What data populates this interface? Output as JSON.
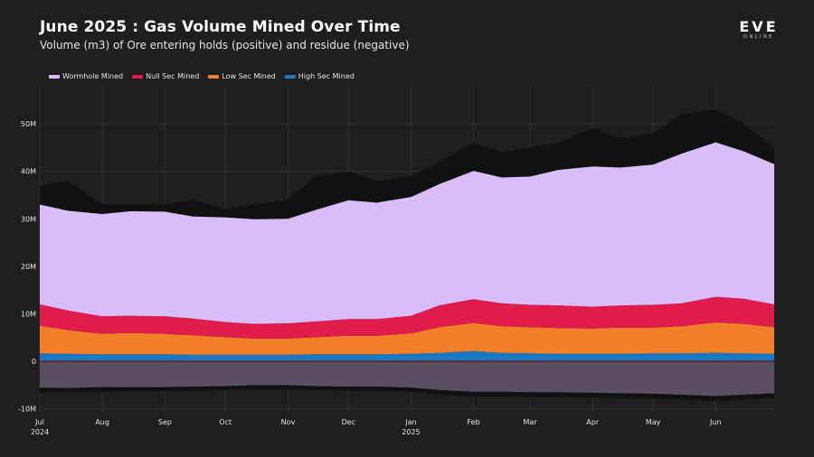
{
  "header": {
    "title": "June 2025 : Gas Volume Mined Over Time",
    "subtitle": "Volume (m3) of Ore entering holds (positive) and residue (negative)"
  },
  "logo": {
    "main": "EVE",
    "sub": "ONLINE"
  },
  "colors": {
    "background": "#1e1e1e",
    "grid": "#333333",
    "total_envelope": "#111111",
    "residue": "#5a4e62",
    "residue_envelope": "#111111",
    "zero_line": "#6b1f1f"
  },
  "chart_data": {
    "type": "area",
    "stacked": true,
    "x_range": [
      "2024-07-01",
      "2025-06-30"
    ],
    "x_ticks": [
      {
        "date": "2024-07-01",
        "label": "Jul",
        "sublabel": "2024"
      },
      {
        "date": "2024-08-01",
        "label": "Aug",
        "sublabel": ""
      },
      {
        "date": "2024-09-01",
        "label": "Sep",
        "sublabel": ""
      },
      {
        "date": "2024-10-01",
        "label": "Oct",
        "sublabel": ""
      },
      {
        "date": "2024-11-01",
        "label": "Nov",
        "sublabel": ""
      },
      {
        "date": "2024-12-01",
        "label": "Dec",
        "sublabel": ""
      },
      {
        "date": "2025-01-01",
        "label": "Jan",
        "sublabel": "2025"
      },
      {
        "date": "2025-02-01",
        "label": "Feb",
        "sublabel": ""
      },
      {
        "date": "2025-03-01",
        "label": "Mar",
        "sublabel": ""
      },
      {
        "date": "2025-04-01",
        "label": "Apr",
        "sublabel": ""
      },
      {
        "date": "2025-05-01",
        "label": "May",
        "sublabel": ""
      },
      {
        "date": "2025-06-01",
        "label": "Jun",
        "sublabel": ""
      }
    ],
    "y_ticks": [
      {
        "value": -10,
        "label": "-10M"
      },
      {
        "value": 0,
        "label": "0"
      },
      {
        "value": 10,
        "label": "10M"
      },
      {
        "value": 20,
        "label": "20M"
      },
      {
        "value": 30,
        "label": "30M"
      },
      {
        "value": 40,
        "label": "40M"
      },
      {
        "value": 50,
        "label": "50M"
      }
    ],
    "ylim": [
      -11,
      58
    ],
    "grid": true,
    "legend_position": "top-left",
    "x": [
      "2024-07-01",
      "2024-07-15",
      "2024-08-01",
      "2024-08-15",
      "2024-09-01",
      "2024-09-15",
      "2024-10-01",
      "2024-10-15",
      "2024-11-01",
      "2024-11-15",
      "2024-12-01",
      "2024-12-15",
      "2025-01-01",
      "2025-01-15",
      "2025-02-01",
      "2025-02-15",
      "2025-03-01",
      "2025-03-15",
      "2025-04-01",
      "2025-04-15",
      "2025-05-01",
      "2025-05-15",
      "2025-06-01",
      "2025-06-15",
      "2025-06-30"
    ],
    "series": [
      {
        "name": "High Sec Mined",
        "color": "#1c78c0",
        "values": [
          1.7,
          1.6,
          1.5,
          1.5,
          1.5,
          1.4,
          1.4,
          1.4,
          1.4,
          1.5,
          1.5,
          1.5,
          1.6,
          1.8,
          2.2,
          1.8,
          1.7,
          1.6,
          1.6,
          1.6,
          1.7,
          1.7,
          1.8,
          1.7,
          1.6
        ]
      },
      {
        "name": "Low Sec Mined",
        "color": "#f47f2b",
        "values": [
          5.8,
          5.0,
          4.3,
          4.5,
          4.3,
          4.1,
          3.7,
          3.4,
          3.4,
          3.6,
          3.9,
          3.9,
          4.3,
          5.4,
          5.9,
          5.6,
          5.5,
          5.4,
          5.3,
          5.5,
          5.4,
          5.7,
          6.4,
          6.2,
          5.6
        ]
      },
      {
        "name": "Null Sec Mined",
        "color": "#e01c4c",
        "values": [
          4.5,
          4.1,
          3.7,
          3.6,
          3.7,
          3.5,
          3.2,
          3.1,
          3.2,
          3.3,
          3.5,
          3.5,
          3.7,
          4.6,
          5.0,
          4.8,
          4.7,
          4.8,
          4.6,
          4.7,
          4.8,
          4.8,
          5.4,
          5.3,
          4.8
        ]
      },
      {
        "name": "Wormhole Mined",
        "color": "#d8bdf8",
        "values": [
          21.0,
          21.0,
          21.5,
          22.0,
          22.0,
          21.5,
          22.0,
          22.0,
          22.0,
          23.5,
          25.0,
          24.5,
          25.0,
          25.5,
          27.0,
          26.5,
          27.0,
          28.5,
          29.5,
          29.0,
          29.5,
          31.5,
          32.5,
          31.0,
          29.5
        ]
      }
    ],
    "envelope_total": [
      37,
      38,
      33,
      33,
      33,
      34,
      32,
      33,
      34,
      39,
      40,
      38,
      39,
      42,
      46,
      44,
      45,
      46,
      49,
      47,
      48,
      52,
      53,
      50,
      45
    ],
    "residue": [
      -5.5,
      -5.6,
      -5.4,
      -5.4,
      -5.4,
      -5.3,
      -5.2,
      -5.0,
      -5.0,
      -5.2,
      -5.3,
      -5.3,
      -5.5,
      -6.0,
      -6.4,
      -6.4,
      -6.5,
      -6.5,
      -6.6,
      -6.7,
      -6.8,
      -7.0,
      -7.3,
      -7.0,
      -6.7
    ],
    "residue_envelope": [
      -6.5,
      -6.5,
      -6.5,
      -6.2,
      -6.2,
      -6.3,
      -6.0,
      -5.9,
      -5.9,
      -6.0,
      -6.2,
      -6.2,
      -6.4,
      -7.0,
      -7.4,
      -7.4,
      -7.5,
      -7.5,
      -7.6,
      -7.7,
      -7.8,
      -8.0,
      -8.4,
      -8.0,
      -7.7
    ]
  }
}
